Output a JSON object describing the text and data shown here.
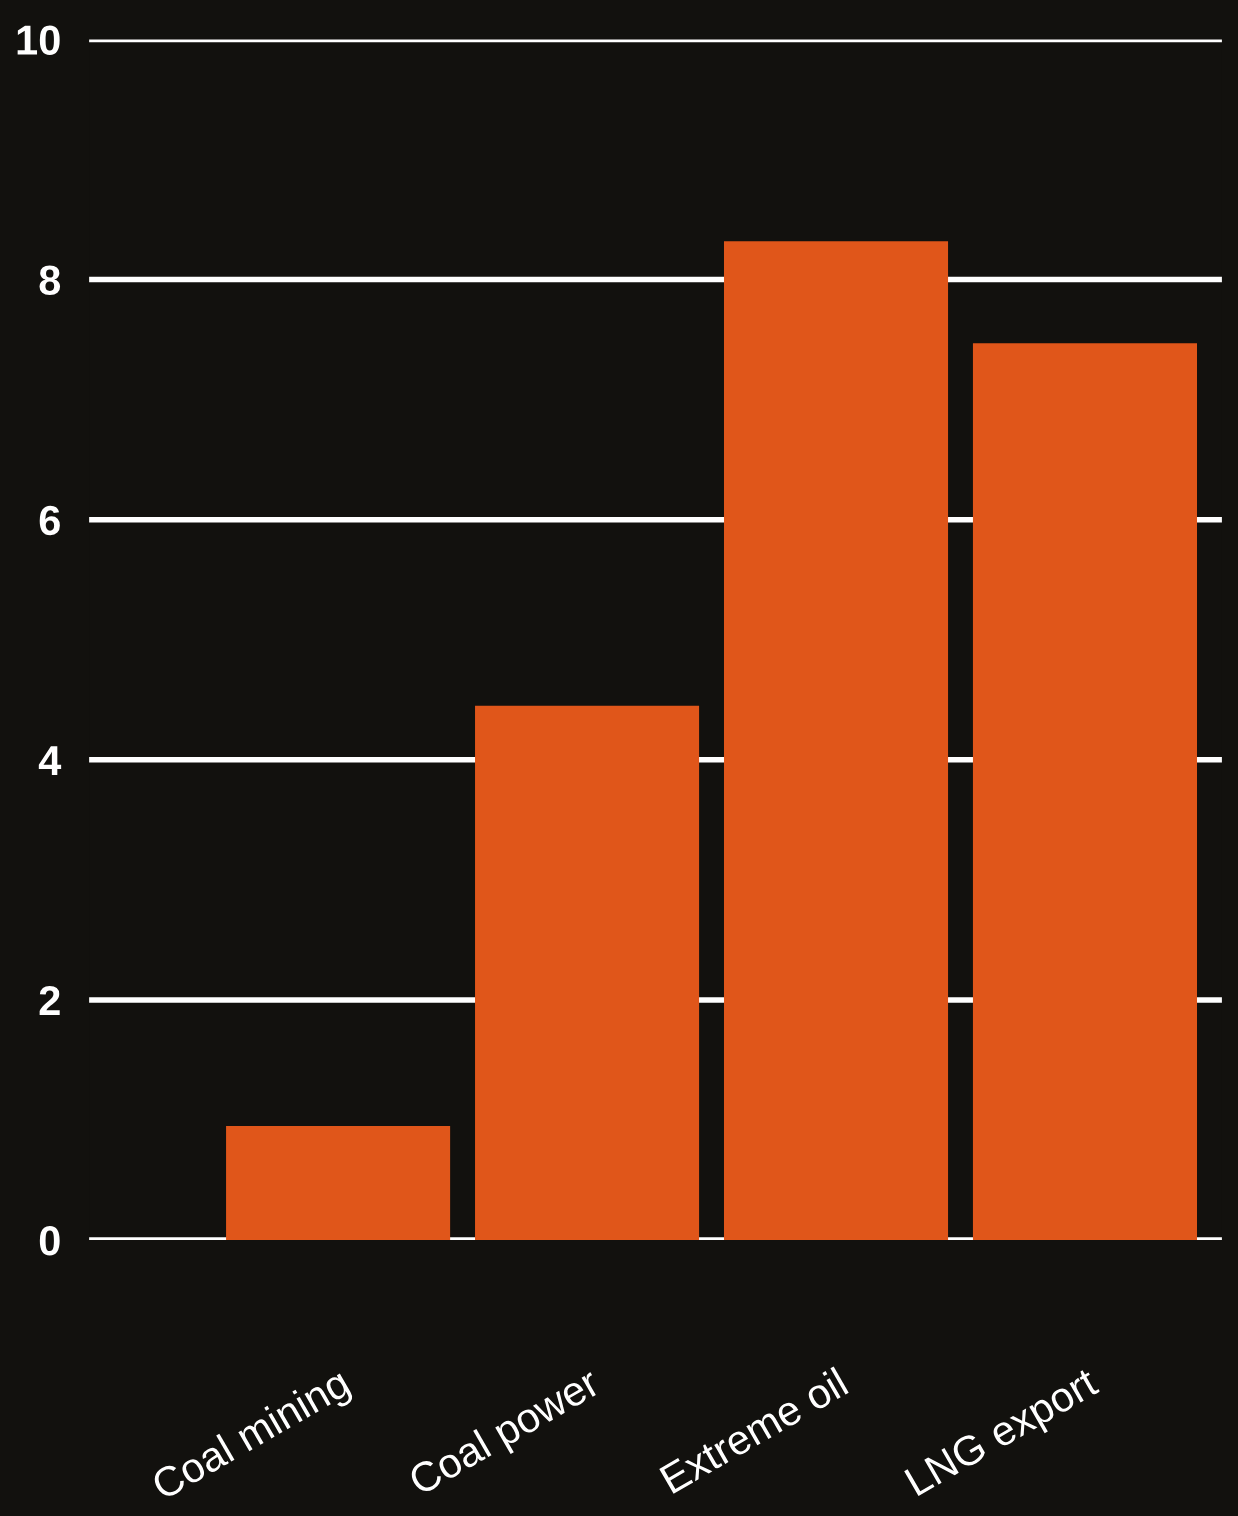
{
  "chart_data": {
    "type": "bar",
    "categories": [
      "Coal mining",
      "Coal power",
      "Extreme oil",
      "LNG export"
    ],
    "values": [
      0.95,
      4.45,
      8.32,
      7.47
    ],
    "color": "#e0561a",
    "ylim": [
      0,
      10
    ],
    "yticks": [
      0,
      2,
      4,
      6,
      8,
      10
    ],
    "grid": "y"
  }
}
